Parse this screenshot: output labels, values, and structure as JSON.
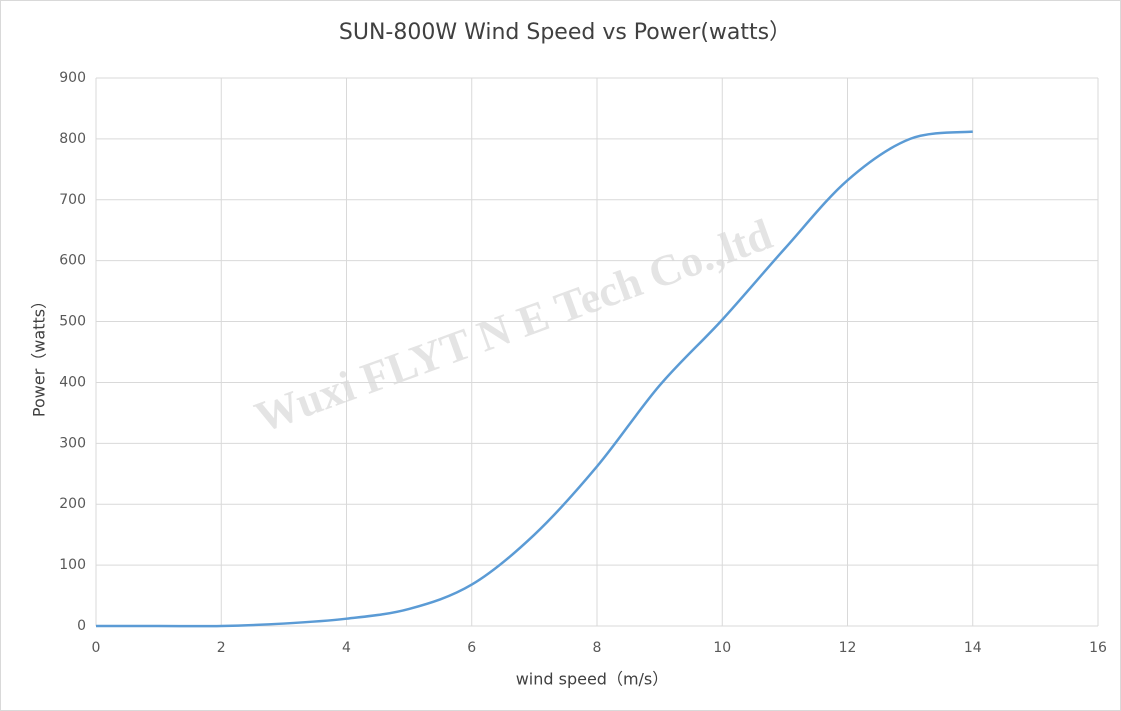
{
  "chart_data": {
    "type": "line",
    "title": "SUN-800W Wind Speed vs Power(watts）",
    "x_label": "wind speed（m/s）",
    "y_label": "Power（watts）",
    "watermark": "Wuxi FLYT N E Tech Co.,ltd",
    "x": [
      0,
      1,
      2,
      3,
      4,
      5,
      6,
      7,
      8,
      9,
      10,
      11,
      12,
      13,
      14
    ],
    "series": [
      {
        "name": "Power",
        "color": "#5b9bd5",
        "values": [
          0,
          0,
          0,
          4,
          12,
          28,
          68,
          150,
          262,
          395,
          503,
          620,
          732,
          800,
          812
        ]
      }
    ],
    "xlim": [
      0,
      16
    ],
    "xticks": [
      0,
      2,
      4,
      6,
      8,
      10,
      12,
      14,
      16
    ],
    "ylim": [
      0,
      900
    ],
    "yticks": [
      0,
      100,
      200,
      300,
      400,
      500,
      600,
      700,
      800,
      900
    ],
    "grid": true
  }
}
